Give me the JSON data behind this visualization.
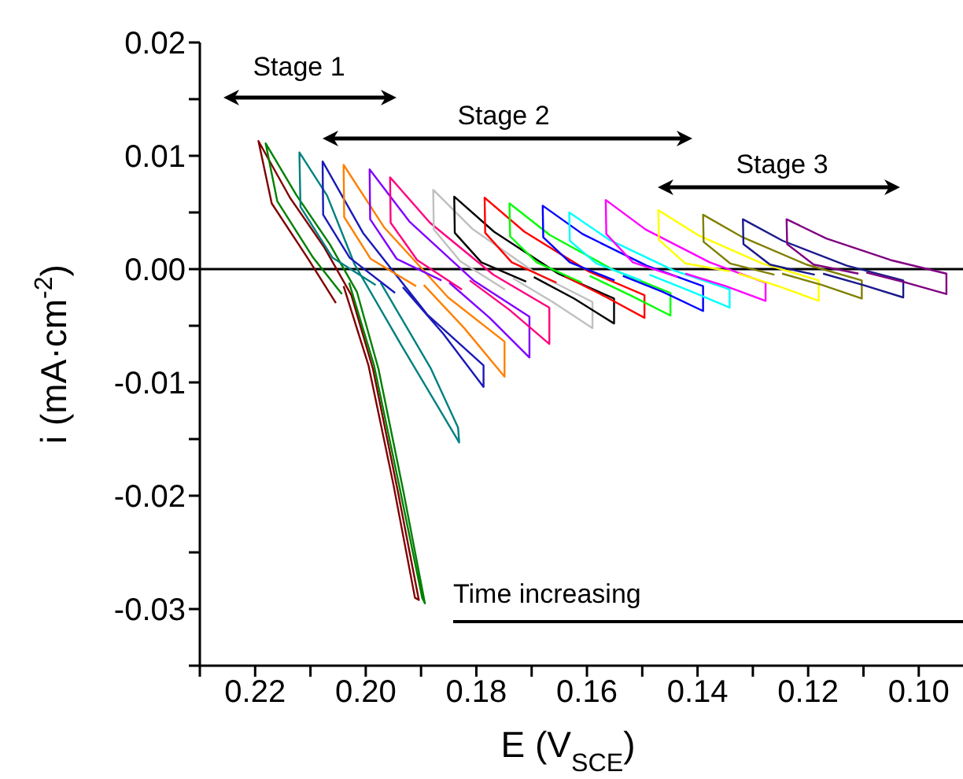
{
  "chart_data": {
    "type": "line",
    "xlabel": "E (V$_{SCE}$)",
    "ylabel": "i (mA·cm$^{-2}$)",
    "xlim": [
      0.23,
      0.092
    ],
    "ylim": [
      -0.035,
      0.02
    ],
    "xticks": [
      {
        "value": 0.23,
        "label": null
      },
      {
        "value": 0.22,
        "label": "0.22"
      },
      {
        "value": 0.21,
        "label": null
      },
      {
        "value": 0.2,
        "label": "0.20"
      },
      {
        "value": 0.19,
        "label": null
      },
      {
        "value": 0.18,
        "label": "0.18"
      },
      {
        "value": 0.17,
        "label": null
      },
      {
        "value": 0.16,
        "label": "0.16"
      },
      {
        "value": 0.15,
        "label": null
      },
      {
        "value": 0.14,
        "label": "0.14"
      },
      {
        "value": 0.13,
        "label": null
      },
      {
        "value": 0.12,
        "label": "0.12"
      },
      {
        "value": 0.11,
        "label": null
      },
      {
        "value": 0.1,
        "label": "0.10"
      }
    ],
    "yticks": [
      {
        "value": -0.035,
        "label": null
      },
      {
        "value": -0.03,
        "label": "-0.03"
      },
      {
        "value": -0.025,
        "label": null
      },
      {
        "value": -0.02,
        "label": "-0.02"
      },
      {
        "value": -0.015,
        "label": null
      },
      {
        "value": -0.01,
        "label": "-0.01"
      },
      {
        "value": -0.005,
        "label": null
      },
      {
        "value": 0,
        "label": "0.00"
      },
      {
        "value": 0.005,
        "label": null
      },
      {
        "value": 0.01,
        "label": "0.01"
      },
      {
        "value": 0.015,
        "label": null
      },
      {
        "value": 0.02,
        "label": "0.02"
      }
    ],
    "grid": false,
    "legend": false,
    "marker": "none",
    "line_style": "solid",
    "ref_lines": [
      {
        "axis": "y",
        "value": 0,
        "color": "#000000"
      }
    ],
    "annotations": [
      "Stage 1",
      "Stage 2",
      "Stage 3",
      "Time increasing"
    ],
    "series": [
      {
        "color": "#800000",
        "x": [
          0.2054,
          0.2104,
          0.217,
          0.2194,
          0.2137,
          0.2076,
          0.2026,
          0.1987,
          0.1942,
          0.1904,
          0.1911,
          0.195,
          0.1995,
          0.204
        ],
        "values": [
          -0.003,
          0.0009,
          0.0058,
          0.0113,
          0.0063,
          0.002,
          -0.0023,
          -0.0088,
          -0.0196,
          -0.0292,
          -0.029,
          -0.019,
          -0.0085,
          -0.0015
        ]
      },
      {
        "color": "#008000",
        "x": [
          0.2043,
          0.2095,
          0.216,
          0.2181,
          0.2125,
          0.2065,
          0.2016,
          0.1977,
          0.1932,
          0.1893,
          0.1898,
          0.194,
          0.1985,
          0.203
        ],
        "values": [
          -0.0022,
          0.001,
          0.006,
          0.0111,
          0.0065,
          0.0022,
          -0.002,
          -0.0088,
          -0.0196,
          -0.0295,
          -0.029,
          -0.019,
          -0.0085,
          -0.0012
        ]
      },
      {
        "color": "#008080",
        "x": [
          0.1982,
          0.206,
          0.2118,
          0.212,
          0.207,
          0.202,
          0.1937,
          0.1831,
          0.1833,
          0.1882,
          0.1973
        ],
        "values": [
          -0.0014,
          0.001,
          0.0055,
          0.0103,
          0.0065,
          0.0004,
          -0.0066,
          -0.0153,
          -0.014,
          -0.0088,
          -0.0012
        ]
      },
      {
        "color": "#1a1ab8",
        "x": [
          0.1947,
          0.2029,
          0.2077,
          0.2078,
          0.2005,
          0.1889,
          0.1787,
          0.1787,
          0.186,
          0.1933
        ],
        "values": [
          -0.0021,
          0.001,
          0.0048,
          0.0095,
          0.0032,
          -0.004,
          -0.0085,
          -0.0104,
          -0.0057,
          -0.0016
        ]
      },
      {
        "color": "#ff8000",
        "x": [
          0.1909,
          0.1991,
          0.2039,
          0.204,
          0.1967,
          0.1851,
          0.1749,
          0.1749,
          0.1822,
          0.1895
        ],
        "values": [
          -0.0015,
          0.0009,
          0.0046,
          0.0092,
          0.0037,
          -0.0025,
          -0.0064,
          -0.0095,
          -0.0052,
          -0.0014
        ]
      },
      {
        "color": "#8000ff",
        "x": [
          0.1863,
          0.1944,
          0.1992,
          0.1993,
          0.1921,
          0.1805,
          0.1704,
          0.1704,
          0.1776,
          0.1849
        ],
        "values": [
          -0.001,
          0.0009,
          0.0044,
          0.0088,
          0.0042,
          -0.001,
          -0.0042,
          -0.0078,
          -0.0043,
          -0.0012
        ]
      },
      {
        "color": "#ff0080",
        "x": [
          0.1826,
          0.1907,
          0.1955,
          0.1956,
          0.1884,
          0.1769,
          0.1668,
          0.1668,
          0.174,
          0.1812
        ],
        "values": [
          -0.0018,
          0.0008,
          0.0041,
          0.0081,
          0.0041,
          -0.0005,
          -0.0034,
          -0.0066,
          -0.0036,
          -0.001
        ]
      },
      {
        "color": "#c0c0c0",
        "x": [
          0.1748,
          0.1829,
          0.1877,
          0.1878,
          0.1806,
          0.1691,
          0.159,
          0.159,
          0.1662,
          0.1734
        ],
        "values": [
          -0.0018,
          0.0007,
          0.0035,
          0.007,
          0.0035,
          -0.0004,
          -0.0029,
          -0.0052,
          -0.0029,
          -0.0008
        ]
      },
      {
        "color": "#000000",
        "x": [
          0.171,
          0.1791,
          0.1839,
          0.184,
          0.1768,
          0.1652,
          0.1551,
          0.1551,
          0.1623,
          0.1696
        ],
        "values": [
          -0.0011,
          0.0006,
          0.0032,
          0.0064,
          0.0033,
          -0.0004,
          -0.0026,
          -0.0048,
          -0.0026,
          -0.0007
        ]
      },
      {
        "color": "#ff0000",
        "x": [
          0.1655,
          0.1736,
          0.1784,
          0.1785,
          0.1713,
          0.1597,
          0.1496,
          0.1496,
          0.1568,
          0.1641
        ],
        "values": [
          -0.0012,
          0.0006,
          0.0032,
          0.0063,
          0.0033,
          -0.0002,
          -0.0023,
          -0.0043,
          -0.0024,
          -0.0006
        ]
      },
      {
        "color": "#00ff00",
        "x": [
          0.1609,
          0.1691,
          0.1739,
          0.174,
          0.1667,
          0.1551,
          0.1449,
          0.1449,
          0.1522,
          0.1595
        ],
        "values": [
          -0.0012,
          0.0006,
          0.0029,
          0.0058,
          0.003,
          -0.0001,
          -0.0021,
          -0.0041,
          -0.0023,
          -0.0006
        ]
      },
      {
        "color": "#0000ff",
        "x": [
          0.155,
          0.1631,
          0.1679,
          0.168,
          0.1608,
          0.1492,
          0.139,
          0.139,
          0.1463,
          0.1535
        ],
        "values": [
          -0.001,
          0.0006,
          0.0028,
          0.0056,
          0.0031,
          0.0003,
          -0.0015,
          -0.0037,
          -0.002,
          -0.0006
        ]
      },
      {
        "color": "#00ffff",
        "x": [
          0.1502,
          0.1583,
          0.1631,
          0.1632,
          0.156,
          0.1444,
          0.1342,
          0.1342,
          0.1415,
          0.1487
        ],
        "values": [
          -0.001,
          0.0005,
          0.0025,
          0.005,
          0.0026,
          -0.0001,
          -0.0018,
          -0.0034,
          -0.0019,
          -0.0005
        ]
      },
      {
        "color": "#ff00ff",
        "x": [
          0.1436,
          0.1517,
          0.1565,
          0.1566,
          0.1494,
          0.1378,
          0.1277,
          0.1277,
          0.1349,
          0.1422
        ],
        "values": [
          -0.0007,
          0.0006,
          0.0031,
          0.0061,
          0.0035,
          0.0006,
          -0.0012,
          -0.0028,
          -0.0015,
          -0.0004
        ]
      },
      {
        "color": "#ffff00",
        "x": [
          0.1341,
          0.1422,
          0.147,
          0.1471,
          0.1399,
          0.1283,
          0.1181,
          0.1181,
          0.1254,
          0.1326
        ],
        "values": [
          -0.0002,
          0.0005,
          0.0026,
          0.0052,
          0.003,
          0.0005,
          -0.001,
          -0.0028,
          -0.0015,
          -0.0004
        ]
      },
      {
        "color": "#808000",
        "x": [
          0.1261,
          0.1341,
          0.1389,
          0.139,
          0.1318,
          0.1203,
          0.1103,
          0.1103,
          0.1175,
          0.1247
        ],
        "values": [
          -0.0005,
          0.0005,
          0.0024,
          0.0048,
          0.0028,
          0.0004,
          -0.001,
          -0.0026,
          -0.0014,
          -0.0004
        ]
      },
      {
        "color": "#1a1a8c",
        "x": [
          0.1188,
          0.1269,
          0.1317,
          0.1318,
          0.1246,
          0.113,
          0.1028,
          0.1028,
          0.1101,
          0.1173
        ],
        "values": [
          -0.0005,
          0.0004,
          0.0022,
          0.0044,
          0.0025,
          0.0003,
          -0.001,
          -0.0025,
          -0.0014,
          -0.0004
        ]
      },
      {
        "color": "#800080",
        "x": [
          0.1109,
          0.119,
          0.1238,
          0.1239,
          0.1167,
          0.1051,
          0.095,
          0.095,
          0.1022,
          0.1095
        ],
        "values": [
          -0.0004,
          0.0004,
          0.0022,
          0.0044,
          0.0027,
          0.0008,
          -0.0004,
          -0.0022,
          -0.0012,
          -0.0003
        ]
      }
    ]
  }
}
